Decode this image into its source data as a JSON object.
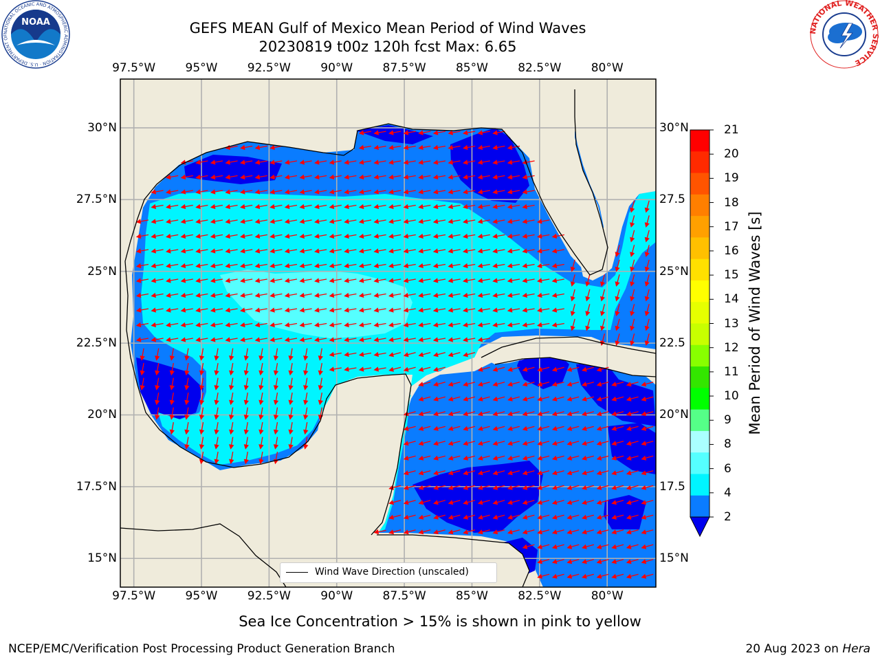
{
  "title": {
    "line1": "GEFS MEAN Gulf of Mexico Mean Period of Wind Waves",
    "line2": "20230819 t00z 120h fcst   Max: 6.65"
  },
  "map": {
    "lon_labels": [
      "97.5°W",
      "95°W",
      "92.5°W",
      "90°W",
      "87.5°W",
      "85°W",
      "82.5°W",
      "80°W"
    ],
    "lat_labels_left": [
      "30°N",
      "27.5°N",
      "25°N",
      "22.5°N",
      "20°N",
      "17.5°N",
      "15°N"
    ],
    "lat_labels_right": [
      "30°N",
      "27.5",
      "25°N",
      "22.5",
      "20°N",
      "17.5",
      "15°N"
    ],
    "lon_range": [
      -98,
      -78.2
    ],
    "lat_range": [
      14,
      31.7
    ],
    "colors": {
      "land": "#efebdb",
      "coastline": "#000000",
      "gridline": "#b0b0b0",
      "arrow": "#ff0000",
      "band_lt2": "#0000ee",
      "band_2_4": "#0a7cff",
      "band_4_6": "#00f5ff",
      "band_6_8": "#55ffff"
    }
  },
  "legend": {
    "label": "Wind Wave Direction (unscaled)"
  },
  "colorbar": {
    "label": "Mean Period of Wind Waves [s]",
    "ticks": [
      "21",
      "20",
      "19",
      "18",
      "17",
      "16",
      "15",
      "14",
      "13",
      "12",
      "11",
      "10",
      "9",
      "8",
      "6",
      "4",
      "2"
    ],
    "colors": [
      "#ff0000",
      "#ff2a00",
      "#ff5400",
      "#ff7f00",
      "#ffa000",
      "#ffc000",
      "#ffe000",
      "#ffff00",
      "#e6ff00",
      "#c8ff00",
      "#88ff00",
      "#33e600",
      "#00ff00",
      "#55ff88",
      "#aaffff",
      "#55ffff",
      "#00f5ff",
      "#0a7cff",
      "#0000ee"
    ]
  },
  "footer": {
    "subtitle": "Sea Ice Concentration > 15% is shown in pink to yellow",
    "left": "NCEP/EMC/Verification Post Processing Product Generation Branch",
    "right_prefix": "20 Aug 2023 on ",
    "right_host": "Hera"
  },
  "logos": {
    "noaa_text": "NOAA",
    "noaa_ring": "NATIONAL OCEANIC AND ATMOSPHERIC ADMINISTRATION · U.S. DEPARTMENT OF COMMERCE",
    "nws_ring": "NATIONAL WEATHER SERVICE"
  }
}
